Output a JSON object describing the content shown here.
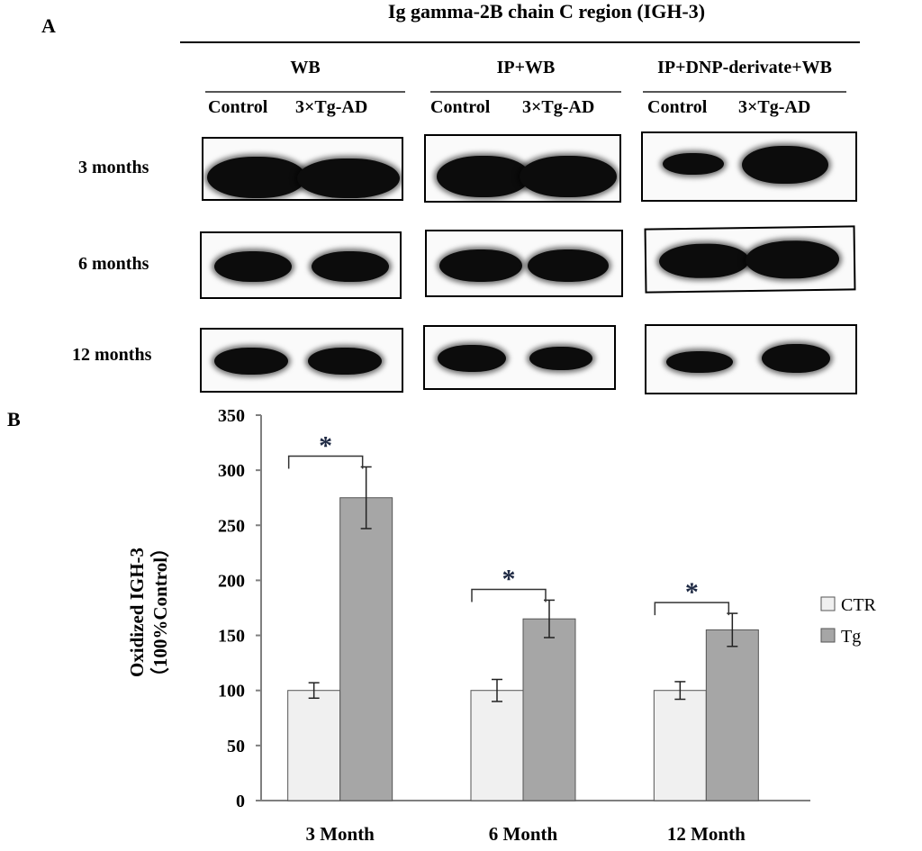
{
  "panel_a": {
    "letter": "A",
    "title": "Ig gamma-2B chain C region (IGH-3)",
    "groups": [
      {
        "label": "WB",
        "lanes": [
          "Control",
          "3×Tg-AD"
        ]
      },
      {
        "label": "IP+WB",
        "lanes": [
          "Control",
          "3×Tg-AD"
        ]
      },
      {
        "label": "IP+DNP-derivate+WB",
        "lanes": [
          "Control",
          "3×Tg-AD"
        ]
      }
    ],
    "rows": [
      "3 months",
      "6 months",
      "12 months"
    ]
  },
  "panel_b": {
    "letter": "B",
    "significance_marker": "*"
  },
  "chart_data": {
    "type": "bar",
    "categories": [
      "3 Month",
      "6 Month",
      "12 Month"
    ],
    "series": [
      {
        "name": "CTR",
        "values": [
          100,
          100,
          100
        ],
        "errors": [
          7,
          10,
          8
        ],
        "color": "#f0f0f0"
      },
      {
        "name": "Tg",
        "values": [
          275,
          165,
          155
        ],
        "errors": [
          28,
          17,
          15
        ],
        "color": "#a6a6a6"
      }
    ],
    "ylabel_line1": "Oxidized IGH-3",
    "ylabel_line2": "（100%Control）",
    "ylim": [
      0,
      350
    ],
    "yticks": [
      "0",
      "50",
      "100",
      "150",
      "200",
      "250",
      "300",
      "350"
    ],
    "grid": false,
    "legend": "right",
    "significant": [
      true,
      true,
      true
    ]
  }
}
